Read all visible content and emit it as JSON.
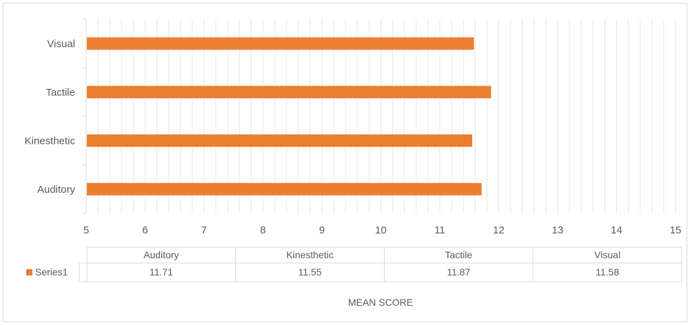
{
  "chart_data": {
    "type": "bar",
    "orientation": "horizontal",
    "categories": [
      "Auditory",
      "Kinesthetic",
      "Tactile",
      "Visual"
    ],
    "series": [
      {
        "name": "Series1",
        "values": [
          11.71,
          11.55,
          11.87,
          11.58
        ],
        "color": "#ed7d31"
      }
    ],
    "xlim": [
      5,
      15
    ],
    "x_ticks": [
      "5",
      "6",
      "7",
      "8",
      "9",
      "10",
      "11",
      "12",
      "13",
      "14",
      "15"
    ],
    "xlabel": "MEAN SCORE",
    "grid": "vertical-minor",
    "data_table": {
      "headers": [
        "Auditory",
        "Kinesthetic",
        "Tactile",
        "Visual"
      ],
      "row_label": "Series1",
      "values": [
        "11.71",
        "11.55",
        "11.87",
        "11.58"
      ]
    }
  }
}
